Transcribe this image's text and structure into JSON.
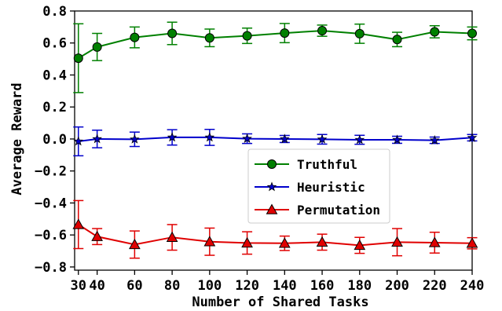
{
  "chart_data": {
    "type": "line",
    "xlabel": "Number of Shared Tasks",
    "ylabel": "Average Reward",
    "x": [
      30,
      40,
      60,
      80,
      100,
      120,
      140,
      160,
      180,
      200,
      220,
      240
    ],
    "xticks": [
      "30",
      "40",
      "60",
      "80",
      "100",
      "120",
      "140",
      "160",
      "180",
      "200",
      "220",
      "240"
    ],
    "yticks": [
      "−0.8",
      "−0.6",
      "−0.4",
      "−0.2",
      "0.0",
      "0.2",
      "0.4",
      "0.6",
      "0.8"
    ],
    "ytick_values": [
      -0.8,
      -0.6,
      -0.4,
      -0.2,
      0.0,
      0.2,
      0.4,
      0.6,
      0.8
    ],
    "xlim": [
      28,
      240
    ],
    "ylim": [
      -0.82,
      0.8
    ],
    "grid": false,
    "legend_position": "center-right",
    "series": [
      {
        "name": "Truthful",
        "color": "#008000",
        "marker": "circle",
        "values": [
          0.505,
          0.575,
          0.635,
          0.66,
          0.632,
          0.645,
          0.662,
          0.677,
          0.658,
          0.622,
          0.67,
          0.66
        ],
        "errors": [
          0.215,
          0.085,
          0.065,
          0.07,
          0.055,
          0.048,
          0.06,
          0.035,
          0.06,
          0.045,
          0.038,
          0.04
        ]
      },
      {
        "name": "Heuristic",
        "color": "#0000cc",
        "marker": "star",
        "values": [
          -0.015,
          0.0,
          -0.002,
          0.01,
          0.01,
          0.002,
          0.0,
          -0.002,
          -0.005,
          -0.005,
          -0.008,
          0.008
        ],
        "errors": [
          0.09,
          0.055,
          0.045,
          0.048,
          0.05,
          0.03,
          0.022,
          0.03,
          0.028,
          0.022,
          0.02,
          0.02
        ]
      },
      {
        "name": "Permutation",
        "color": "#e00000",
        "marker": "triangle",
        "values": [
          -0.535,
          -0.61,
          -0.66,
          -0.615,
          -0.642,
          -0.65,
          -0.652,
          -0.645,
          -0.665,
          -0.645,
          -0.648,
          -0.652
        ],
        "errors": [
          0.15,
          0.05,
          0.085,
          0.08,
          0.085,
          0.07,
          0.045,
          0.05,
          0.05,
          0.085,
          0.065,
          0.035
        ]
      }
    ]
  }
}
